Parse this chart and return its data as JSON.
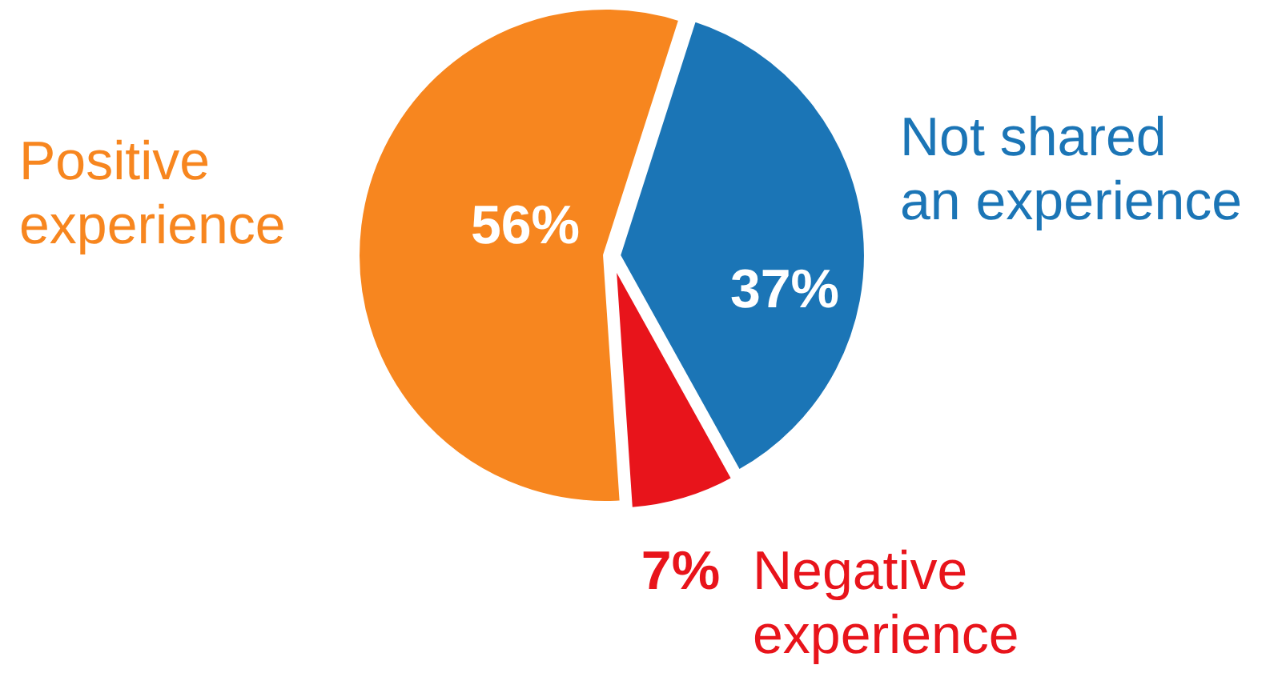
{
  "chart_data": {
    "type": "pie",
    "categories": [
      "Not shared an experience",
      "Negative experience",
      "Positive experience"
    ],
    "values": [
      37,
      7,
      56
    ],
    "colors": [
      "#1b75b6",
      "#e8141b",
      "#f7861f"
    ],
    "value_labels": [
      "37%",
      "7%",
      "56%"
    ]
  }
}
